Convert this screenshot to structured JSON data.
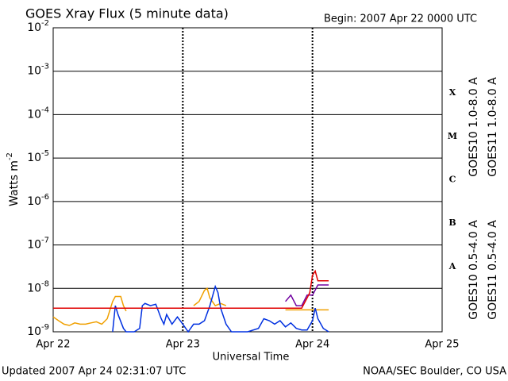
{
  "chart_data": {
    "type": "line",
    "title": "GOES Xray Flux (5 minute data)",
    "begin": "Begin:  2007 Apr 22 0000 UTC",
    "x_label": "Universal Time",
    "y_label": "Watts m",
    "y_label_exp": "-2",
    "updated": "Updated 2007 Apr 24 02:31:07 UTC",
    "source": "NOAA/SEC Boulder, CO USA",
    "log_y": true,
    "grid": true,
    "ylim": [
      1e-09,
      0.01
    ],
    "yticks": [
      {
        "value": 1e-09,
        "label": "10",
        "exp": "-9"
      },
      {
        "value": 1e-08,
        "label": "10",
        "exp": "-8"
      },
      {
        "value": 1e-07,
        "label": "10",
        "exp": "-7"
      },
      {
        "value": 1e-06,
        "label": "10",
        "exp": "-6"
      },
      {
        "value": 1e-05,
        "label": "10",
        "exp": "-5"
      },
      {
        "value": 0.0001,
        "label": "10",
        "exp": "-4"
      },
      {
        "value": 0.001,
        "label": "10",
        "exp": "-3"
      },
      {
        "value": 0.01,
        "label": "10",
        "exp": "-2"
      }
    ],
    "xlim": [
      0,
      72
    ],
    "xticks": [
      {
        "value": 0,
        "label": "Apr 22"
      },
      {
        "value": 24,
        "label": "Apr 23"
      },
      {
        "value": 48,
        "label": "Apr 24"
      },
      {
        "value": 72,
        "label": "Apr 25"
      }
    ],
    "flare_classes": [
      "A",
      "B",
      "C",
      "M",
      "X"
    ],
    "series": [
      {
        "name": "GOES10 0.5-4.0 A",
        "color": "#f0a000",
        "x": [
          0,
          1,
          2,
          3,
          4,
          5,
          6,
          7,
          8,
          9,
          10,
          11,
          11.5,
          12.5,
          13,
          13.5,
          14,
          26,
          27,
          28,
          28.5,
          29,
          30,
          31,
          32,
          40,
          43,
          51
        ],
        "values": [
          2.2e-09,
          1.8e-09,
          1.5e-09,
          1.4e-09,
          1.6e-09,
          1.5e-09,
          1.5e-09,
          1.6e-09,
          1.7e-09,
          1.5e-09,
          2e-09,
          5e-09,
          6.5e-09,
          6.5e-09,
          4e-09,
          3e-09,
          null,
          4e-09,
          5e-09,
          9e-09,
          1e-08,
          6e-09,
          4e-09,
          4.5e-09,
          4e-09,
          null,
          3.2e-09,
          3.2e-09
        ]
      },
      {
        "name": "GOES11 0.5-4.0 A",
        "color": "#0030e0",
        "x": [
          11,
          11.5,
          12,
          13,
          13.5,
          14,
          15,
          16,
          16.5,
          17,
          18,
          19,
          20,
          20.5,
          21,
          22,
          23,
          24,
          25,
          26,
          27,
          28,
          29,
          30,
          30.5,
          31,
          32,
          33,
          34,
          36,
          38,
          39,
          40,
          41,
          42,
          43,
          44,
          45,
          46,
          47,
          48,
          48.5,
          49,
          50,
          51
        ],
        "values": [
          1e-09,
          4e-09,
          2.5e-09,
          1.2e-09,
          1e-09,
          1e-09,
          1e-09,
          1.2e-09,
          4e-09,
          4.5e-09,
          4e-09,
          4.3e-09,
          2e-09,
          1.5e-09,
          2.5e-09,
          1.5e-09,
          2.2e-09,
          1.5e-09,
          1e-09,
          1.5e-09,
          1.5e-09,
          1.8e-09,
          4e-09,
          1.1e-08,
          8e-09,
          3.5e-09,
          1.5e-09,
          1e-09,
          1e-09,
          1e-09,
          1.2e-09,
          2e-09,
          1.8e-09,
          1.5e-09,
          1.8e-09,
          1.3e-09,
          1.6e-09,
          1.2e-09,
          1.1e-09,
          1.1e-09,
          1.8e-09,
          3.5e-09,
          2e-09,
          1.2e-09,
          1e-09
        ]
      },
      {
        "name": "GOES10 1.0-8.0 A",
        "color": "#7000a0",
        "x": [
          43,
          44,
          45,
          46,
          47,
          48,
          49,
          51
        ],
        "values": [
          5e-09,
          7e-09,
          4e-09,
          4e-09,
          7e-09,
          7e-09,
          1.2e-08,
          1.2e-08
        ]
      },
      {
        "name": "GOES11 1.0-8.0 A",
        "color": "#e00000",
        "x": [
          0,
          46,
          47,
          47.5,
          48,
          48.5,
          49,
          51
        ],
        "values": [
          3.5e-09,
          3.5e-09,
          6e-09,
          8e-09,
          2e-08,
          2.5e-08,
          1.5e-08,
          1.5e-08
        ]
      }
    ]
  }
}
